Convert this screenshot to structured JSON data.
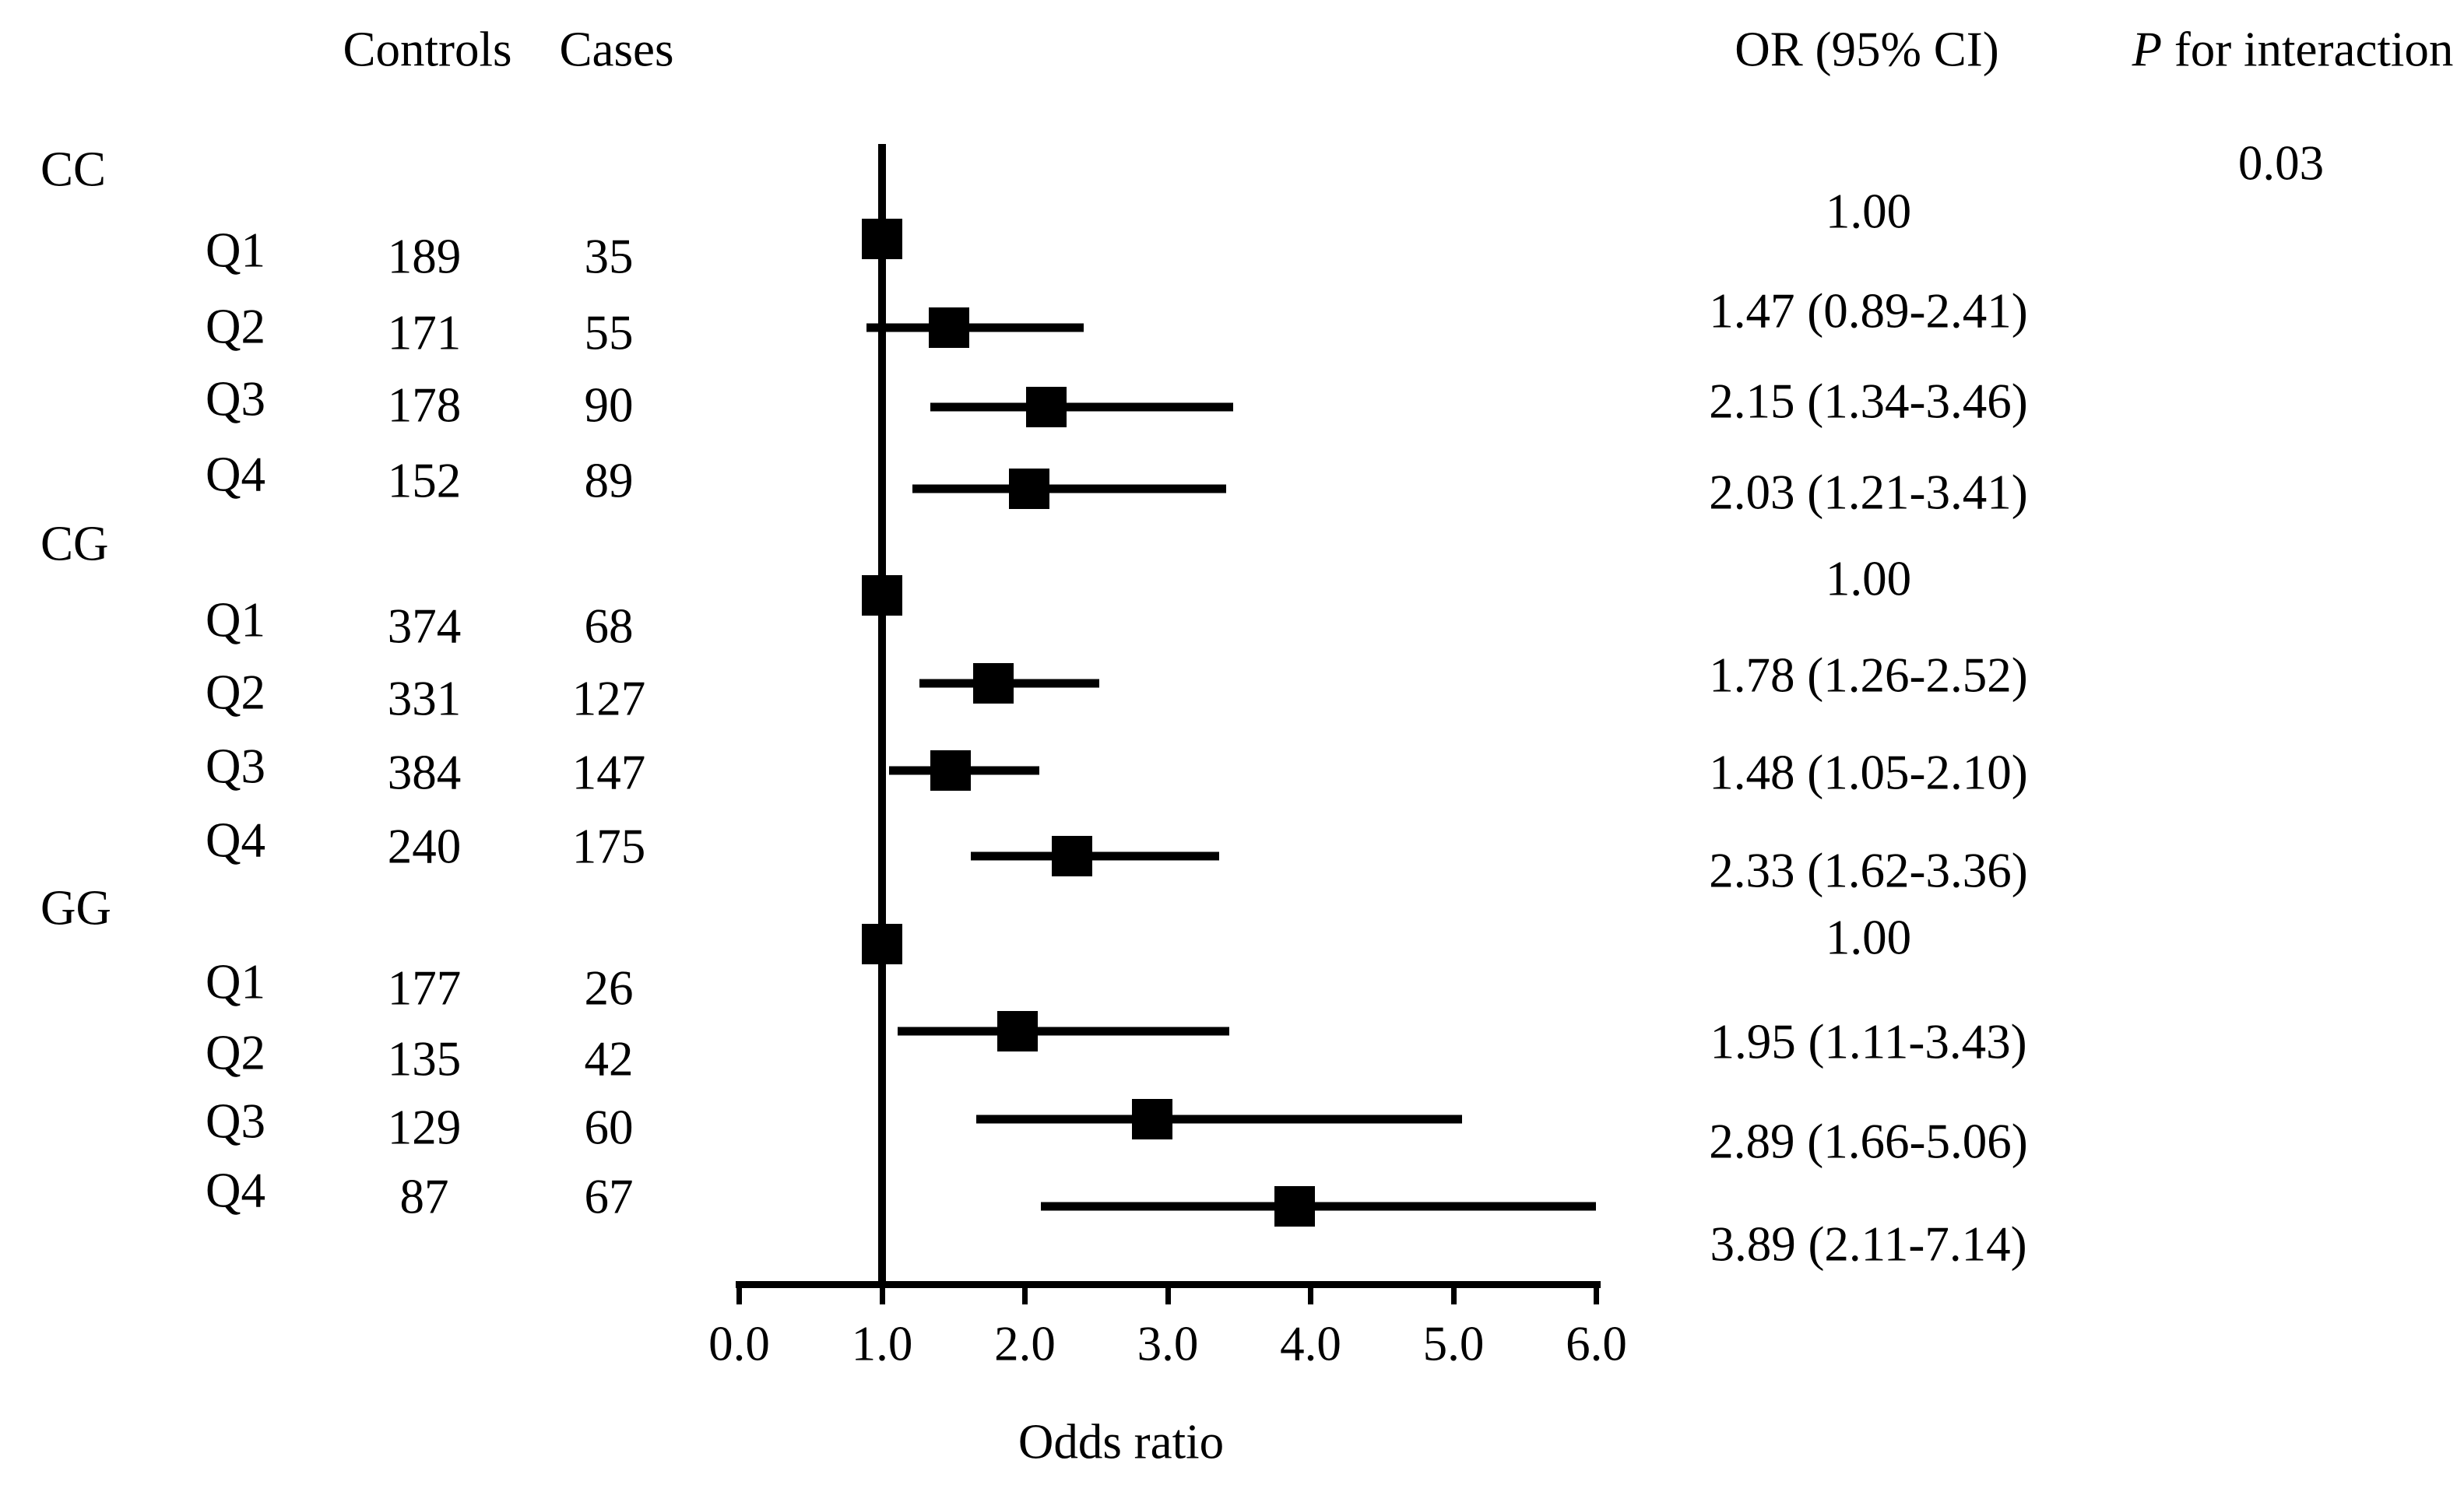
{
  "chart_data": {
    "type": "forest",
    "xlabel": "Odds ratio",
    "xlim": [
      0,
      6
    ],
    "x_tick_values": [
      0,
      1,
      2,
      3,
      4,
      5,
      6
    ],
    "x_tick_labels": [
      "0.0",
      "1.0",
      "2.0",
      "3.0",
      "4.0",
      "5.0",
      "6.0"
    ],
    "reference_line_x": 1.0,
    "grid": false,
    "columns": {
      "controls": "Controls",
      "cases": "Cases",
      "or_ci": "OR (95% CI)",
      "p_interaction_italic": "P",
      "p_interaction_rest": " for interaction"
    },
    "p_for_interaction": "0.03",
    "groups": [
      {
        "name": "CC",
        "rows": [
          {
            "quartile": "Q1",
            "controls": "189",
            "cases": "35",
            "or": 1.0,
            "ci_low": null,
            "ci_high": null,
            "or_text": "1.00"
          },
          {
            "quartile": "Q2",
            "controls": "171",
            "cases": "55",
            "or": 1.47,
            "ci_low": 0.89,
            "ci_high": 2.41,
            "or_text": "1.47 (0.89-2.41)"
          },
          {
            "quartile": "Q3",
            "controls": "178",
            "cases": "90",
            "or": 2.15,
            "ci_low": 1.34,
            "ci_high": 3.46,
            "or_text": "2.15 (1.34-3.46)"
          },
          {
            "quartile": "Q4",
            "controls": "152",
            "cases": "89",
            "or": 2.03,
            "ci_low": 1.21,
            "ci_high": 3.41,
            "or_text": "2.03 (1.21-3.41)"
          }
        ]
      },
      {
        "name": "CG",
        "rows": [
          {
            "quartile": "Q1",
            "controls": "374",
            "cases": "68",
            "or": 1.0,
            "ci_low": null,
            "ci_high": null,
            "or_text": "1.00"
          },
          {
            "quartile": "Q2",
            "controls": "331",
            "cases": "127",
            "or": 1.78,
            "ci_low": 1.26,
            "ci_high": 2.52,
            "or_text": "1.78 (1.26-2.52)"
          },
          {
            "quartile": "Q3",
            "controls": "384",
            "cases": "147",
            "or": 1.48,
            "ci_low": 1.05,
            "ci_high": 2.1,
            "or_text": "1.48 (1.05-2.10)"
          },
          {
            "quartile": "Q4",
            "controls": "240",
            "cases": "175",
            "or": 2.33,
            "ci_low": 1.62,
            "ci_high": 3.36,
            "or_text": "2.33 (1.62-3.36)"
          }
        ]
      },
      {
        "name": "GG",
        "rows": [
          {
            "quartile": "Q1",
            "controls": "177",
            "cases": "26",
            "or": 1.0,
            "ci_low": null,
            "ci_high": null,
            "or_text": "1.00"
          },
          {
            "quartile": "Q2",
            "controls": "135",
            "cases": "42",
            "or": 1.95,
            "ci_low": 1.11,
            "ci_high": 3.43,
            "or_text": "1.95 (1.11-3.43)"
          },
          {
            "quartile": "Q3",
            "controls": "129",
            "cases": "60",
            "or": 2.89,
            "ci_low": 1.66,
            "ci_high": 5.06,
            "or_text": "2.89 (1.66-5.06)"
          },
          {
            "quartile": "Q4",
            "controls": "87",
            "cases": "67",
            "or": 3.89,
            "ci_low": 2.11,
            "ci_high": 7.14,
            "or_text": "3.89 (2.11-7.14)"
          }
        ]
      }
    ],
    "marker_color": "#000000",
    "background_color": "#ffffff"
  }
}
